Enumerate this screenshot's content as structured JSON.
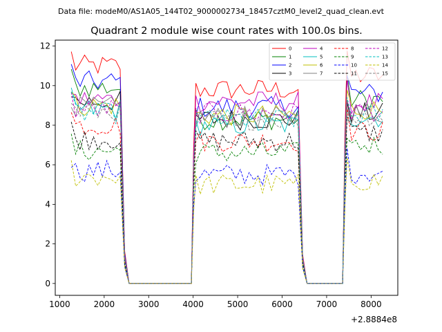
{
  "chart_data": {
    "type": "line",
    "suptitle": "Data file: modeM0/AS1A05_144T02_9000002734_18457cztM0_level2_quad_clean.evt",
    "title": "Quadrant 2 module wise count rates with 100.0s bins.",
    "xlabel": "",
    "ylabel": "",
    "x_offset_text": "+2.8884e8",
    "xlim": [
      900,
      8600
    ],
    "ylim": [
      -0.6,
      12.3
    ],
    "xticks": [
      1000,
      2000,
      3000,
      4000,
      5000,
      6000,
      7000,
      8000
    ],
    "xtick_labels": [
      "1000",
      "2000",
      "3000",
      "4000",
      "5000",
      "6000",
      "7000",
      "8000"
    ],
    "yticks": [
      0,
      2,
      4,
      6,
      8,
      10,
      12
    ],
    "ytick_labels": [
      "0",
      "2",
      "4",
      "6",
      "8",
      "10",
      "12"
    ],
    "legend_position": "top-right",
    "segments": [
      {
        "start": 1260,
        "end": 2360,
        "bins": 12
      },
      {
        "start": 4060,
        "end": 6360,
        "bins": 24
      },
      {
        "start": 7460,
        "end": 8260,
        "bins": 9
      }
    ],
    "gap_ranges": [
      [
        2560,
        3960
      ],
      [
        6560,
        7360
      ]
    ],
    "series": [
      {
        "name": "0",
        "color": "#ff0000",
        "dash": "solid",
        "levels": [
          11.0,
          9.8,
          10.5
        ]
      },
      {
        "name": "1",
        "color": "#008000",
        "dash": "solid",
        "levels": [
          9.9,
          8.3,
          9.3
        ]
      },
      {
        "name": "2",
        "color": "#0000ff",
        "dash": "solid",
        "levels": [
          10.2,
          8.9,
          9.6
        ]
      },
      {
        "name": "3",
        "color": "#000000",
        "dash": "solid",
        "levels": [
          9.2,
          8.3,
          8.6
        ]
      },
      {
        "name": "4",
        "color": "#bf00bf",
        "dash": "solid",
        "levels": [
          9.3,
          9.2,
          9.1
        ]
      },
      {
        "name": "5",
        "color": "#00bfbf",
        "dash": "solid",
        "levels": [
          8.8,
          8.0,
          8.4
        ]
      },
      {
        "name": "6",
        "color": "#bfbf00",
        "dash": "solid",
        "levels": [
          9.0,
          8.5,
          8.8
        ]
      },
      {
        "name": "7",
        "color": "#808080",
        "dash": "solid",
        "levels": [
          8.9,
          8.4,
          8.6
        ]
      },
      {
        "name": "8",
        "color": "#ff0000",
        "dash": "dashed",
        "levels": [
          8.0,
          7.2,
          7.7
        ]
      },
      {
        "name": "9",
        "color": "#008000",
        "dash": "dashed",
        "levels": [
          6.7,
          6.6,
          7.0
        ]
      },
      {
        "name": "10",
        "color": "#0000ff",
        "dash": "dashed",
        "levels": [
          5.7,
          5.5,
          5.6
        ]
      },
      {
        "name": "11",
        "color": "#000000",
        "dash": "dashed",
        "levels": [
          7.3,
          7.2,
          7.6
        ]
      },
      {
        "name": "12",
        "color": "#bf00bf",
        "dash": "dashed",
        "levels": [
          8.8,
          8.6,
          8.7
        ]
      },
      {
        "name": "13",
        "color": "#00bfbf",
        "dash": "dashed",
        "levels": [
          8.6,
          8.3,
          8.5
        ]
      },
      {
        "name": "14",
        "color": "#bfbf00",
        "dash": "dashed",
        "levels": [
          5.4,
          5.0,
          5.2
        ]
      },
      {
        "name": "15",
        "color": "#808080",
        "dash": "dashed",
        "levels": [
          8.7,
          8.3,
          8.5
        ]
      }
    ]
  }
}
